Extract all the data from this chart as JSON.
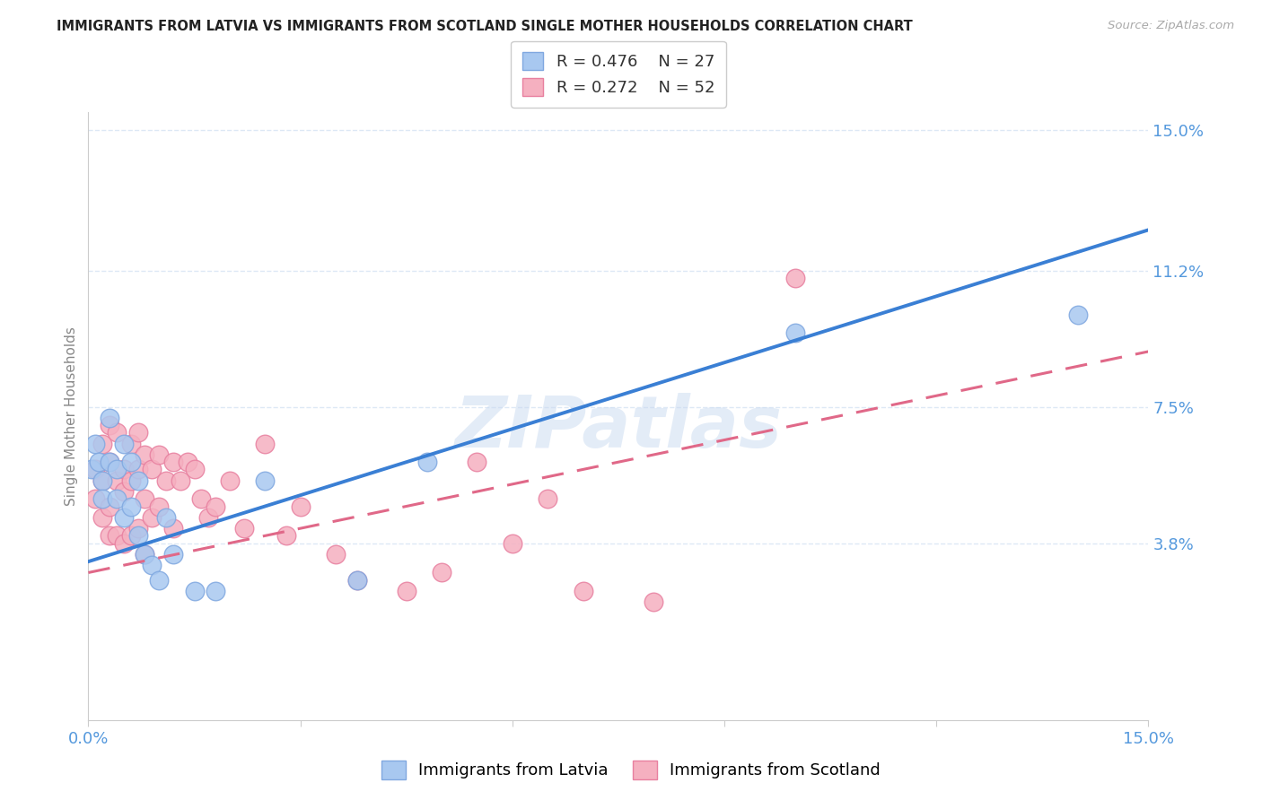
{
  "title": "IMMIGRANTS FROM LATVIA VS IMMIGRANTS FROM SCOTLAND SINGLE MOTHER HOUSEHOLDS CORRELATION CHART",
  "source": "Source: ZipAtlas.com",
  "ylabel": "Single Mother Households",
  "xlim": [
    0.0,
    0.15
  ],
  "ylim": [
    -0.01,
    0.155
  ],
  "xtick_positions": [
    0.0,
    0.03,
    0.06,
    0.09,
    0.12,
    0.15
  ],
  "xticklabels": [
    "0.0%",
    "",
    "",
    "",
    "",
    "15.0%"
  ],
  "yticks_right": [
    0.038,
    0.075,
    0.112,
    0.15
  ],
  "ytick_labels_right": [
    "3.8%",
    "7.5%",
    "11.2%",
    "15.0%"
  ],
  "latvia_R": 0.476,
  "latvia_N": 27,
  "scotland_R": 0.272,
  "scotland_N": 52,
  "latvia_color": "#a8c8f0",
  "latvia_edge_color": "#80a8e0",
  "scotland_color": "#f5b0c0",
  "scotland_edge_color": "#e880a0",
  "line_latvia_color": "#3a7fd4",
  "line_scotland_color": "#e06888",
  "axis_tick_color": "#5599dd",
  "grid_color": "#dde8f5",
  "watermark": "ZIPatlas",
  "latvia_line_intercept": 0.033,
  "latvia_line_slope": 0.6,
  "scotland_line_intercept": 0.03,
  "scotland_line_slope": 0.4,
  "latvia_x": [
    0.0005,
    0.001,
    0.0015,
    0.002,
    0.002,
    0.003,
    0.003,
    0.004,
    0.004,
    0.005,
    0.005,
    0.006,
    0.006,
    0.007,
    0.007,
    0.008,
    0.009,
    0.01,
    0.011,
    0.012,
    0.015,
    0.018,
    0.025,
    0.038,
    0.048,
    0.1,
    0.14
  ],
  "latvia_y": [
    0.058,
    0.065,
    0.06,
    0.055,
    0.05,
    0.072,
    0.06,
    0.058,
    0.05,
    0.065,
    0.045,
    0.06,
    0.048,
    0.055,
    0.04,
    0.035,
    0.032,
    0.028,
    0.045,
    0.035,
    0.025,
    0.025,
    0.055,
    0.028,
    0.06,
    0.095,
    0.1
  ],
  "scotland_x": [
    0.001,
    0.001,
    0.002,
    0.002,
    0.002,
    0.003,
    0.003,
    0.003,
    0.003,
    0.004,
    0.004,
    0.004,
    0.005,
    0.005,
    0.005,
    0.006,
    0.006,
    0.006,
    0.007,
    0.007,
    0.007,
    0.008,
    0.008,
    0.008,
    0.009,
    0.009,
    0.01,
    0.01,
    0.011,
    0.012,
    0.012,
    0.013,
    0.014,
    0.015,
    0.016,
    0.017,
    0.018,
    0.02,
    0.022,
    0.025,
    0.028,
    0.03,
    0.035,
    0.038,
    0.045,
    0.05,
    0.055,
    0.06,
    0.065,
    0.07,
    0.08,
    0.1
  ],
  "scotland_y": [
    0.058,
    0.05,
    0.065,
    0.055,
    0.045,
    0.07,
    0.06,
    0.048,
    0.04,
    0.068,
    0.055,
    0.04,
    0.058,
    0.052,
    0.038,
    0.065,
    0.055,
    0.04,
    0.068,
    0.058,
    0.042,
    0.062,
    0.05,
    0.035,
    0.058,
    0.045,
    0.062,
    0.048,
    0.055,
    0.06,
    0.042,
    0.055,
    0.06,
    0.058,
    0.05,
    0.045,
    0.048,
    0.055,
    0.042,
    0.065,
    0.04,
    0.048,
    0.035,
    0.028,
    0.025,
    0.03,
    0.06,
    0.038,
    0.05,
    0.025,
    0.022,
    0.11
  ]
}
